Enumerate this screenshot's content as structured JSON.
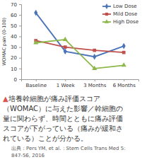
{
  "chart_data": {
    "type": "line",
    "categories": [
      "Baseline",
      "1 Week",
      "3 Months",
      "6 Months"
    ],
    "series": [
      {
        "name": "Low Dose",
        "color": "#4a74b8",
        "marker": "diamond",
        "values": [
          62,
          26,
          21,
          31
        ]
      },
      {
        "name": "Mild Dose",
        "color": "#c0504d",
        "marker": "square",
        "values": [
          36,
          30,
          27,
          25
        ]
      },
      {
        "name": "High Dose",
        "color": "#8cb84a",
        "marker": "triangle",
        "values": [
          34,
          37,
          10,
          13
        ]
      }
    ],
    "ylabel": "WOMAC pain (0-100)",
    "ylim": [
      0,
      70
    ],
    "yticks": [
      0,
      10,
      20,
      30,
      40,
      50,
      60,
      70
    ],
    "grid": false,
    "legend": "top-right",
    "annotations": [
      "▲培養幹細胞が痛み評価スコア",
      "（WOMAC）に与えた影響／幹細胞の",
      "量に関わらず、時間とともに痛み評価",
      "スコアが下がっている（痛みが緩和さ",
      "れている）ことが分かる。"
    ],
    "source": [
      "出典：Pers YM, et al.：Stem Cells Trans Med 5:",
      "847-56, 2016"
    ]
  }
}
